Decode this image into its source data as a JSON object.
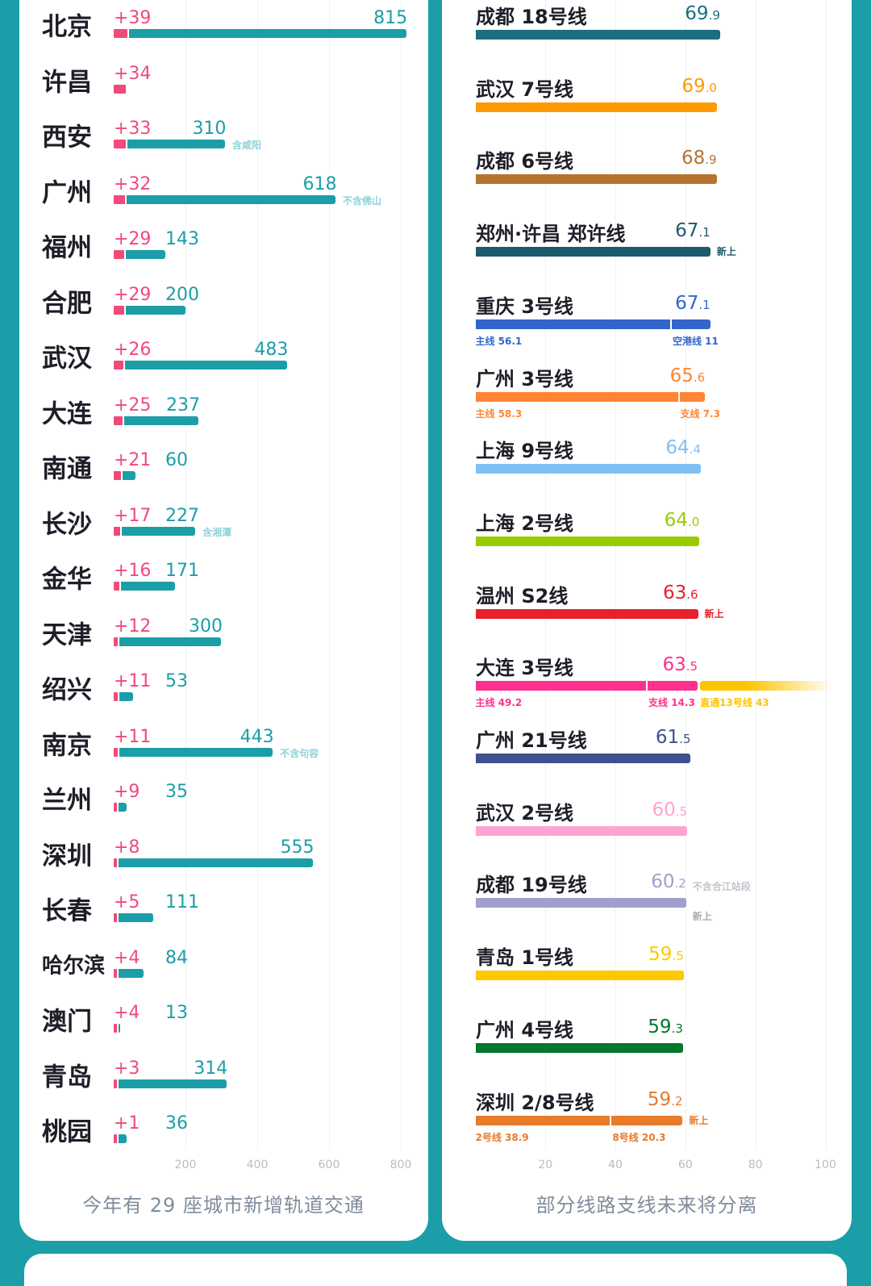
{
  "chart_data": [
    {
      "type": "bar",
      "orientation": "horizontal",
      "stacked": true,
      "title": "",
      "caption": "今年有 29 座城市新增轨道交通",
      "xlim": [
        0,
        800
      ],
      "xticks": [
        "200",
        "400",
        "600",
        "800"
      ],
      "grid": true,
      "colors": {
        "increment": "#f04a7a",
        "total": "#1b9ea8",
        "note": "#8fd2d8"
      },
      "rows": [
        {
          "city": "北京",
          "increment": "+39",
          "inc_value": 39,
          "total": "815",
          "total_value": 815
        },
        {
          "city": "许昌",
          "increment": "+34",
          "inc_value": 34
        },
        {
          "city": "西安",
          "increment": "+33",
          "inc_value": 33,
          "total": "310",
          "total_value": 310,
          "note": "含咸阳"
        },
        {
          "city": "广州",
          "increment": "+32",
          "inc_value": 32,
          "total": "618",
          "total_value": 618,
          "note": "不含佛山"
        },
        {
          "city": "福州",
          "increment": "+29",
          "inc_value": 29,
          "total": "143",
          "total_value": 143
        },
        {
          "city": "合肥",
          "increment": "+29",
          "inc_value": 29,
          "total": "200",
          "total_value": 200
        },
        {
          "city": "武汉",
          "increment": "+26",
          "inc_value": 26,
          "total": "483",
          "total_value": 483
        },
        {
          "city": "大连",
          "increment": "+25",
          "inc_value": 25,
          "total": "237",
          "total_value": 237
        },
        {
          "city": "南通",
          "increment": "+21",
          "inc_value": 21,
          "total": "60",
          "total_value": 60
        },
        {
          "city": "长沙",
          "increment": "+17",
          "inc_value": 17,
          "total": "227",
          "total_value": 227,
          "note": "含湘潭"
        },
        {
          "city": "金华",
          "increment": "+16",
          "inc_value": 16,
          "total": "171",
          "total_value": 171
        },
        {
          "city": "天津",
          "increment": "+12",
          "inc_value": 12,
          "total": "300",
          "total_value": 300
        },
        {
          "city": "绍兴",
          "increment": "+11",
          "inc_value": 11,
          "total": "53",
          "total_value": 53
        },
        {
          "city": "南京",
          "increment": "+11",
          "inc_value": 11,
          "total": "443",
          "total_value": 443,
          "note": "不含句容"
        },
        {
          "city": "兰州",
          "increment": "+9",
          "inc_value": 9,
          "total": "35",
          "total_value": 35
        },
        {
          "city": "深圳",
          "increment": "+8",
          "inc_value": 8,
          "total": "555",
          "total_value": 555
        },
        {
          "city": "长春",
          "increment": "+5",
          "inc_value": 5,
          "total": "111",
          "total_value": 111
        },
        {
          "city": "哈尔滨",
          "increment": "+4",
          "inc_value": 4,
          "total": "84",
          "total_value": 84
        },
        {
          "city": "澳门",
          "increment": "+4",
          "inc_value": 4,
          "total": "13",
          "total_value": 13
        },
        {
          "city": "青岛",
          "increment": "+3",
          "inc_value": 3,
          "total": "314",
          "total_value": 314
        },
        {
          "city": "桃园",
          "increment": "+1",
          "inc_value": 1,
          "total": "36",
          "total_value": 36
        }
      ]
    },
    {
      "type": "bar",
      "orientation": "horizontal",
      "title": "",
      "caption": "部分线路支线未来将分离",
      "xlim": [
        0,
        100
      ],
      "xticks": [
        "20",
        "40",
        "60",
        "80",
        "100"
      ],
      "grid": true,
      "rows": [
        {
          "line": "成都 18号线",
          "value": "69.9",
          "color": "#1a6f80"
        },
        {
          "line": "武汉 7号线",
          "value": "69.0",
          "color": "#ff9a00"
        },
        {
          "line": "成都 6号线",
          "value": "68.9",
          "color": "#b5742e"
        },
        {
          "line": "郑州·许昌 郑许线",
          "value": "67.1",
          "color": "#1b5a6b",
          "tag": "新上"
        },
        {
          "line": "重庆 3号线",
          "value": "67.1",
          "color": "#3366cc",
          "segments": [
            {
              "label": "主线 56.1",
              "value": 56.1
            },
            {
              "label": "空港线 11",
              "value": 11
            }
          ]
        },
        {
          "line": "广州 3号线",
          "value": "65.6",
          "color": "#ff8533",
          "segments": [
            {
              "label": "主线 58.3",
              "value": 58.3
            },
            {
              "label": "支线 7.3",
              "value": 7.3
            }
          ]
        },
        {
          "line": "上海 9号线",
          "value": "64.4",
          "color": "#80c0f5"
        },
        {
          "line": "上海 2号线",
          "value": "64.0",
          "color": "#99cc00"
        },
        {
          "line": "温州 S2线",
          "value": "63.6",
          "color": "#e8202a",
          "tag": "新上"
        },
        {
          "line": "大连 3号线",
          "value": "63.5",
          "color": "#ff3090",
          "segments": [
            {
              "label": "主线 49.2",
              "value": 49.2
            },
            {
              "label": "支线 14.3",
              "value": 14.3
            }
          ],
          "extension": {
            "label": "直通13号线 43",
            "value": 43,
            "color": "#ffc400"
          }
        },
        {
          "line": "广州 21号线",
          "value": "61.5",
          "color": "#3f5190"
        },
        {
          "line": "武汉 2号线",
          "value": "60.5",
          "color": "#ffa3d2"
        },
        {
          "line": "成都 19号线",
          "value": "60.2",
          "color": "#a09fcf",
          "note": "不含合江站段",
          "tag": "新上"
        },
        {
          "line": "青岛 1号线",
          "value": "59.5",
          "color": "#ffc800"
        },
        {
          "line": "广州 4号线",
          "value": "59.3",
          "color": "#00782e"
        },
        {
          "line": "深圳 2/8号线",
          "value": "59.2",
          "color": "#e87a2a",
          "tag": "新上",
          "segments": [
            {
              "label": "2号线 38.9",
              "value": 38.9
            },
            {
              "label": "8号线 20.3",
              "value": 20.3
            }
          ]
        }
      ]
    }
  ]
}
